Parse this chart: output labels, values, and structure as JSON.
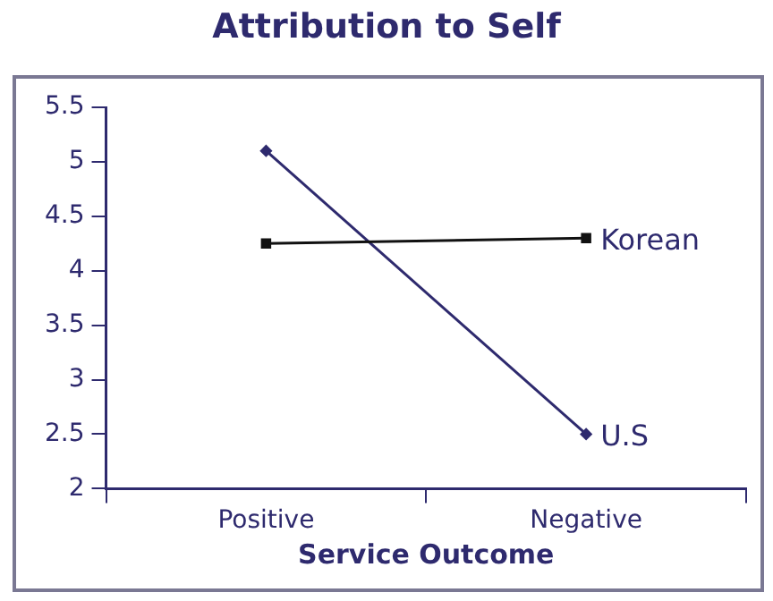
{
  "chart_data": {
    "type": "line",
    "title": "Attribution to Self",
    "xlabel": "Service Outcome",
    "categories": [
      "Positive",
      "Negative"
    ],
    "series": [
      {
        "name": "Korean",
        "color": "#111111",
        "values": [
          4.25,
          4.3
        ],
        "marker": "square"
      },
      {
        "name": "U.S",
        "color": "#2e2a6e",
        "values": [
          5.1,
          2.5
        ],
        "marker": "diamond"
      }
    ],
    "ylim": [
      2,
      5.5
    ],
    "yticks": [
      2,
      2.5,
      3,
      3.5,
      4,
      4.5,
      5,
      5.5
    ],
    "grid": false,
    "legend": false
  }
}
